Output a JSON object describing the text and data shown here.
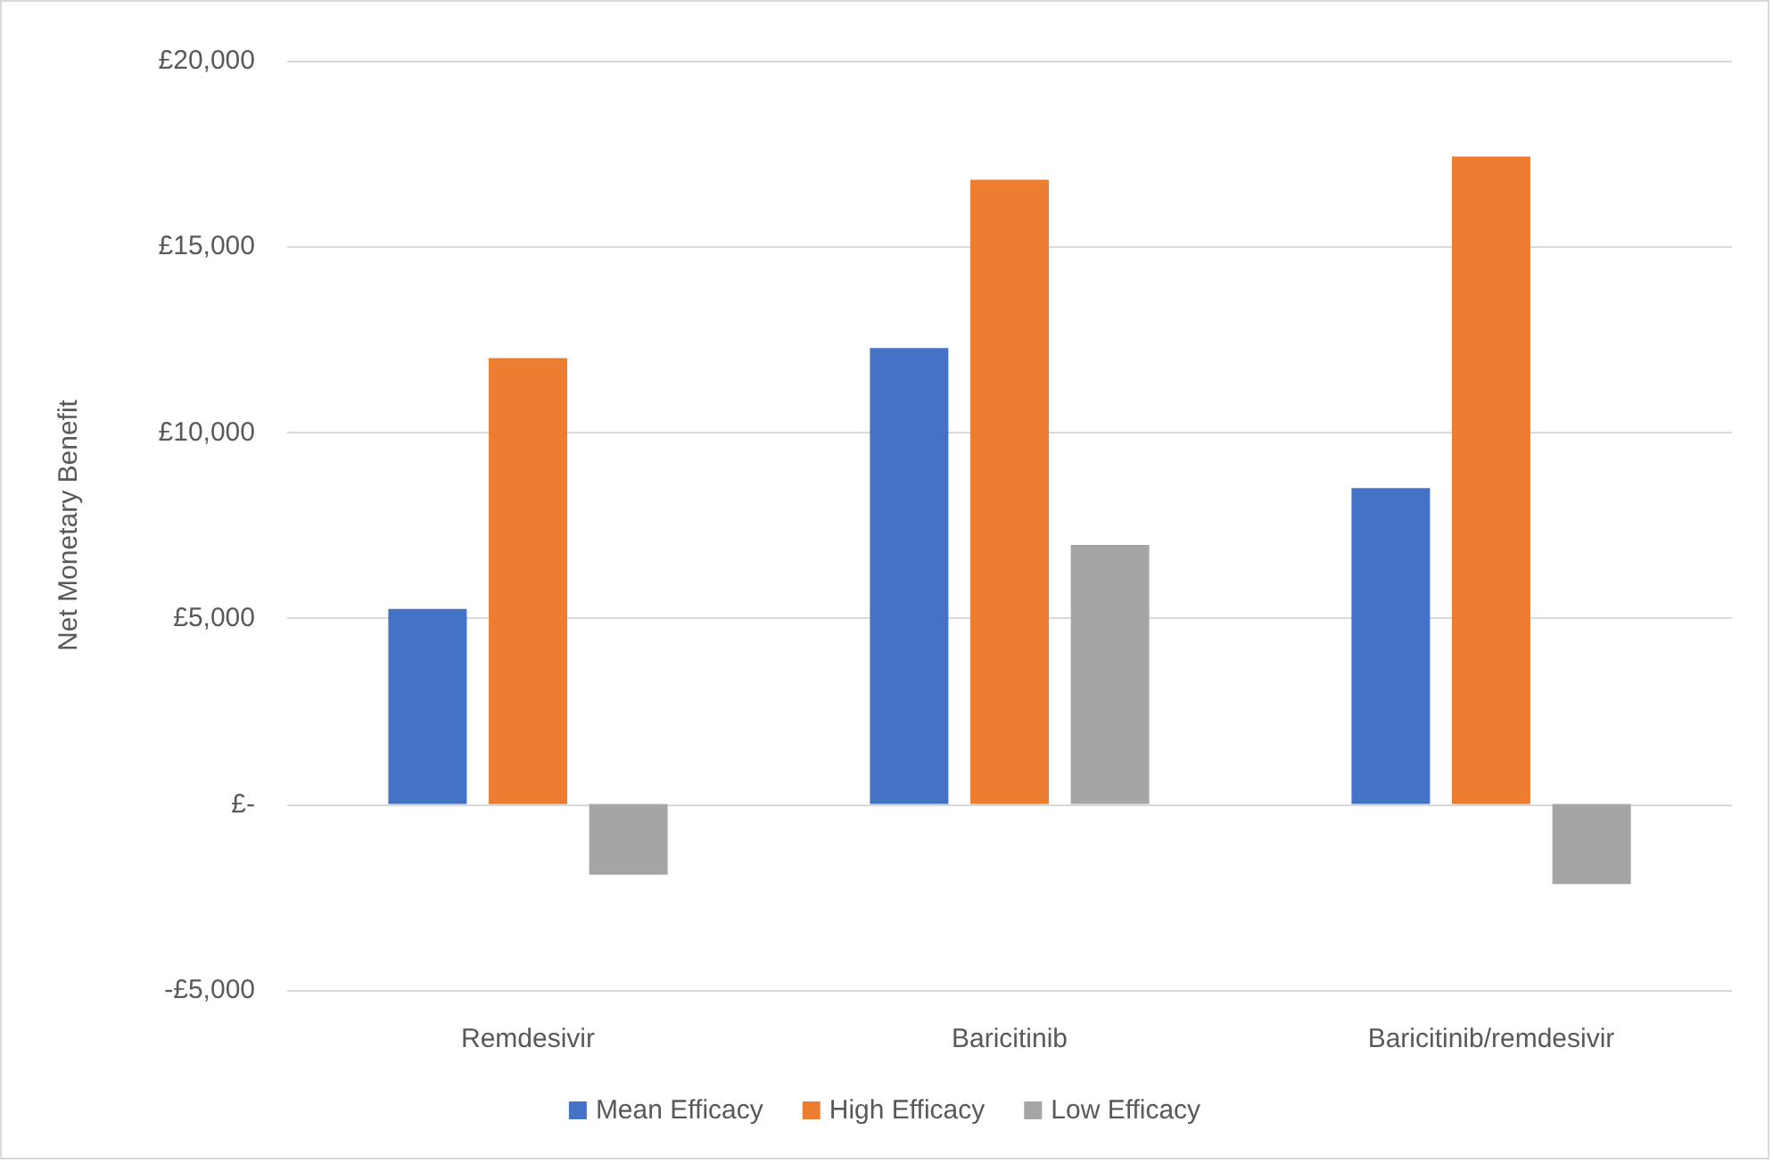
{
  "chart_data": {
    "type": "bar",
    "ylabel": "Net Monetary Benefit",
    "categories": [
      "Remdesivir",
      "Baricitinib",
      "Baricitinib/remdesivir"
    ],
    "series": [
      {
        "name": "Mean Efficacy",
        "color": "#4472c4",
        "values": [
          5250,
          12270,
          8500
        ]
      },
      {
        "name": "High Efficacy",
        "color": "#ed7d31",
        "values": [
          12000,
          16800,
          17420
        ]
      },
      {
        "name": "Low Efficacy",
        "color": "#a5a5a5",
        "values": [
          -1900,
          6970,
          -2150
        ]
      }
    ],
    "ylim": [
      -5000,
      20000
    ],
    "yticks": [
      {
        "value": -5000,
        "label": "-£5,000"
      },
      {
        "value": 0,
        "label": "£-"
      },
      {
        "value": 5000,
        "label": "£5,000"
      },
      {
        "value": 10000,
        "label": "£10,000"
      },
      {
        "value": 15000,
        "label": "£15,000"
      },
      {
        "value": 20000,
        "label": "£20,000"
      }
    ],
    "grid": "y",
    "legend": "bottom"
  }
}
